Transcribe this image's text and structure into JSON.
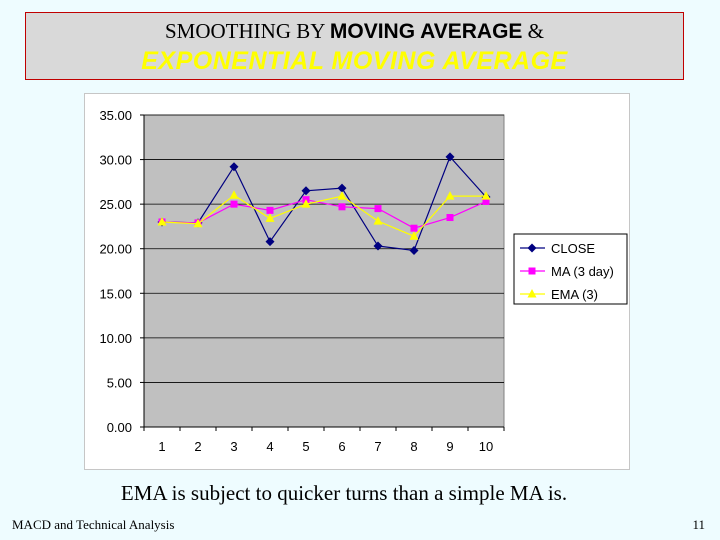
{
  "slide": {
    "title_part1": "SMOOTHING BY ",
    "title_part2": "MOVING AVERAGE",
    "title_part3": " &",
    "title_line2": "EXPONENTIAL MOVING AVERAGE",
    "caption": "EMA is subject to quicker turns than a simple MA is.",
    "footer_left": "MACD and Technical Analysis",
    "page_number": "11"
  },
  "chart_data": {
    "type": "line",
    "categories": [
      "1",
      "2",
      "3",
      "4",
      "5",
      "6",
      "7",
      "8",
      "9",
      "10"
    ],
    "ylim": [
      0,
      35
    ],
    "yticks": [
      "0.00",
      "5.00",
      "10.00",
      "15.00",
      "20.00",
      "25.00",
      "30.00",
      "35.00"
    ],
    "grid": true,
    "plot_bg": "#c0c0c0",
    "legend_position": "right",
    "series": [
      {
        "name": "CLOSE",
        "color": "#000080",
        "marker": "diamond",
        "values": [
          23.0,
          22.9,
          29.2,
          20.8,
          26.5,
          26.8,
          20.3,
          19.8,
          30.3,
          25.8
        ]
      },
      {
        "name": "MA (3 day)",
        "color": "#ff00ff",
        "marker": "square",
        "values": [
          23.0,
          22.9,
          25.0,
          24.3,
          25.5,
          24.7,
          24.5,
          22.3,
          23.5,
          25.3
        ]
      },
      {
        "name": "EMA (3)",
        "color": "#ffff00",
        "marker": "triangle",
        "values": [
          23.0,
          22.8,
          26.0,
          23.4,
          25.0,
          25.9,
          23.1,
          21.4,
          25.9,
          25.9
        ]
      }
    ]
  }
}
